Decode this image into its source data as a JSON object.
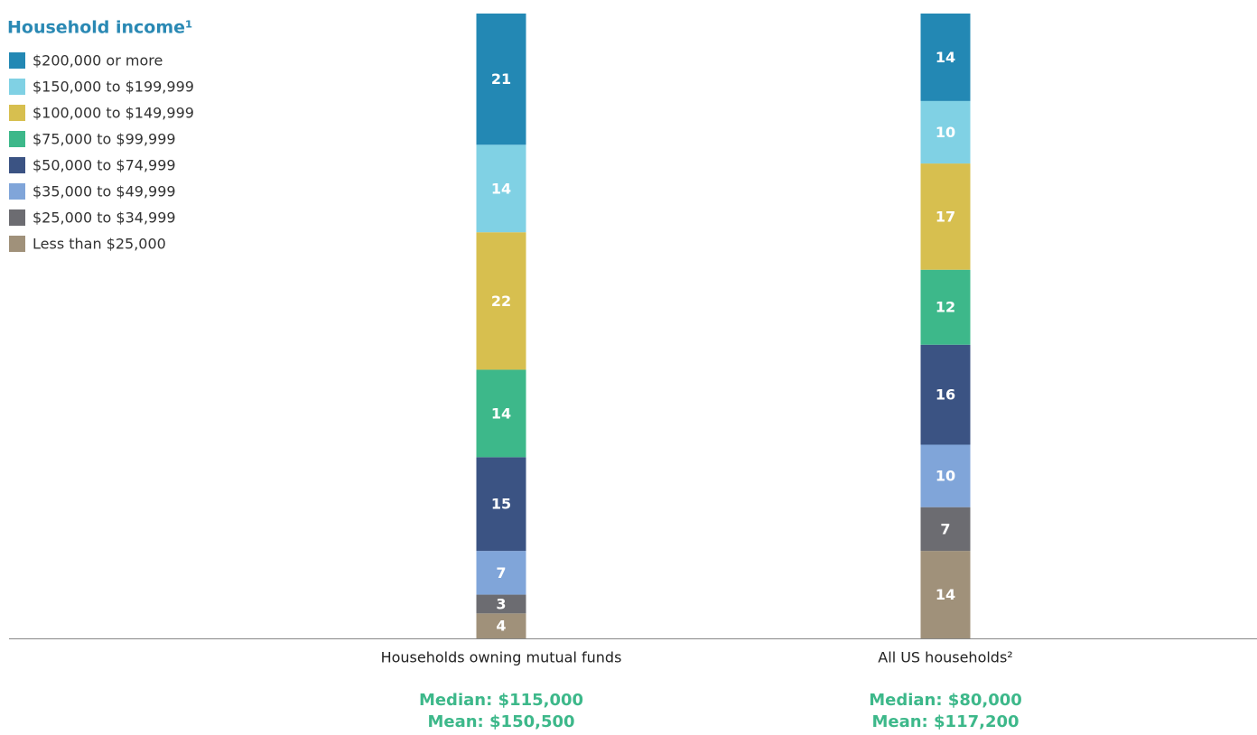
{
  "chart_data": {
    "type": "stacked_bar",
    "title": "Household income¹",
    "categories": [
      "Households owning mutual funds",
      "All US households²"
    ],
    "series": [
      {
        "name": "$200,000 or more",
        "color": "#2388b4",
        "values": [
          21,
          14
        ]
      },
      {
        "name": "$150,000 to $199,999",
        "color": "#80d1e4",
        "values": [
          14,
          10
        ]
      },
      {
        "name": "$100,000 to $149,999",
        "color": "#d7bf4f",
        "values": [
          22,
          17
        ]
      },
      {
        "name": "$75,000 to $99,999",
        "color": "#3db88a",
        "values": [
          14,
          12
        ]
      },
      {
        "name": "$50,000 to $74,999",
        "color": "#3b5383",
        "values": [
          15,
          16
        ]
      },
      {
        "name": "$35,000 to $49,999",
        "color": "#80a5d9",
        "values": [
          7,
          10
        ]
      },
      {
        "name": "$25,000 to $34,999",
        "color": "#6c6c71",
        "values": [
          3,
          7
        ]
      },
      {
        "name": "Less than $25,000",
        "color": "#a0917a",
        "values": [
          4,
          14
        ]
      }
    ],
    "annotations": [
      [
        "Median: $115,000",
        "Mean: $150,500"
      ],
      [
        "Median: $80,000",
        "Mean: $117,200"
      ]
    ],
    "ylim": [
      0,
      100
    ]
  }
}
